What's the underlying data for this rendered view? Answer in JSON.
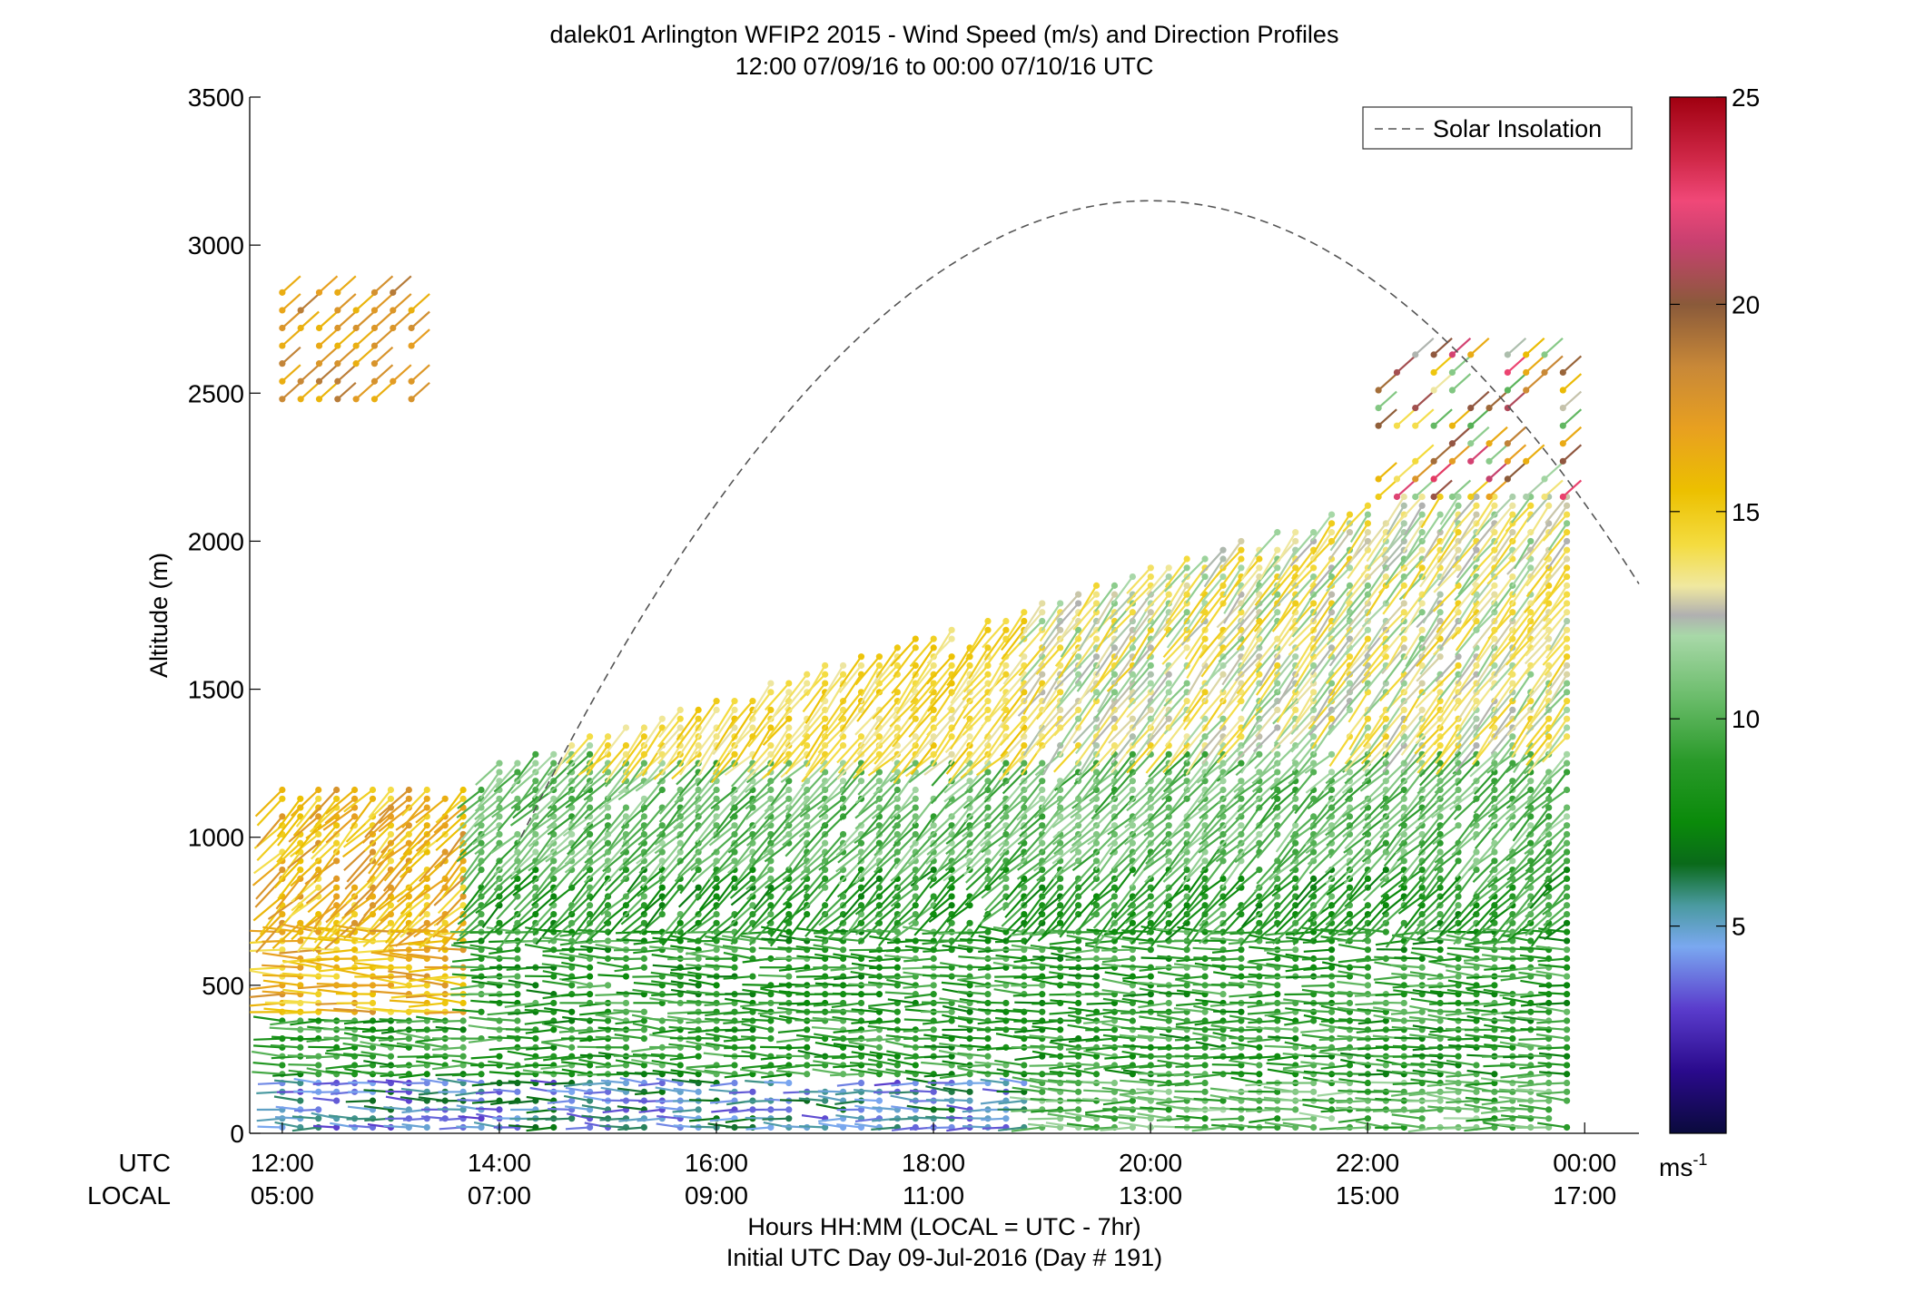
{
  "chart_data": {
    "type": "wind-barb-profile",
    "title": "dalek01 Arlington WFIP2 2015 - Wind Speed (m/s) and Direction Profiles",
    "subtitle": "12:00 07/09/16 to 00:00 07/10/16  UTC",
    "ylabel": "Altitude (m)",
    "xlabel": "Hours HH:MM  (LOCAL = UTC - 7hr)",
    "xlabel2": "Initial UTC Day 09-Jul-2016 (Day # 191)",
    "ylim": [
      0,
      3500
    ],
    "xlim_hours": [
      11.7,
      24.5
    ],
    "yticks": [
      0,
      500,
      1000,
      1500,
      2000,
      2500,
      3000,
      3500
    ],
    "xtick_hours": [
      12,
      14,
      16,
      18,
      20,
      22,
      24
    ],
    "utc_row_label": "UTC",
    "local_row_label": "LOCAL",
    "utc_ticks": [
      "12:00",
      "14:00",
      "16:00",
      "18:00",
      "20:00",
      "22:00",
      "00:00"
    ],
    "local_ticks": [
      "05:00",
      "07:00",
      "09:00",
      "11:00",
      "13:00",
      "15:00",
      "17:00"
    ],
    "legend": {
      "entries": [
        "Solar Insolation"
      ],
      "placement": "top-right",
      "line_color": "#555555",
      "line_style": "dashed"
    },
    "solar_insolation": {
      "shape": "parabola",
      "peak_hour": 20.0,
      "peak_altitude_m": 3150,
      "points": [
        [
          14.2,
          1000
        ],
        [
          15.0,
          1330
        ],
        [
          16.0,
          1930
        ],
        [
          17.0,
          2430
        ],
        [
          18.0,
          2800
        ],
        [
          19.0,
          3050
        ],
        [
          20.0,
          3150
        ],
        [
          21.0,
          3060
        ],
        [
          22.0,
          2850
        ],
        [
          23.0,
          2530
        ],
        [
          24.0,
          2100
        ],
        [
          24.5,
          1820
        ]
      ]
    },
    "colorbar": {
      "label": "ms",
      "label_superscript": "-1",
      "range": [
        0,
        25
      ],
      "ticks": [
        5,
        10,
        15,
        20,
        25
      ],
      "stops": [
        [
          0.0,
          "#0a0a3c"
        ],
        [
          1.5,
          "#2a0a8c"
        ],
        [
          3.0,
          "#5a3ccc"
        ],
        [
          4.5,
          "#7aa8f0"
        ],
        [
          5.5,
          "#4a9aa0"
        ],
        [
          6.5,
          "#0a6a1a"
        ],
        [
          7.5,
          "#0a8a0a"
        ],
        [
          9.0,
          "#2a9a2a"
        ],
        [
          10.5,
          "#6abc6a"
        ],
        [
          12.0,
          "#a8d8a8"
        ],
        [
          12.5,
          "#b0b0b0"
        ],
        [
          13.2,
          "#f0e8a0"
        ],
        [
          14.2,
          "#f4dc40"
        ],
        [
          15.5,
          "#ecc000"
        ],
        [
          17.0,
          "#e8a020"
        ],
        [
          18.5,
          "#c88838"
        ],
        [
          20.0,
          "#8a5a3a"
        ],
        [
          21.5,
          "#c84070"
        ],
        [
          22.5,
          "#f04878"
        ],
        [
          23.5,
          "#d02848"
        ],
        [
          25.0,
          "#a00010"
        ]
      ]
    },
    "barb_field": {
      "x_start_hour": 12.0,
      "x_end_hour": 23.9,
      "x_step_hour": 0.1667,
      "altitude_step_m": 30,
      "min_altitude_m": 20,
      "speed_units": "m/s",
      "notes": "Wind barbs plotted as stick + dot; color encodes wind speed"
    }
  }
}
